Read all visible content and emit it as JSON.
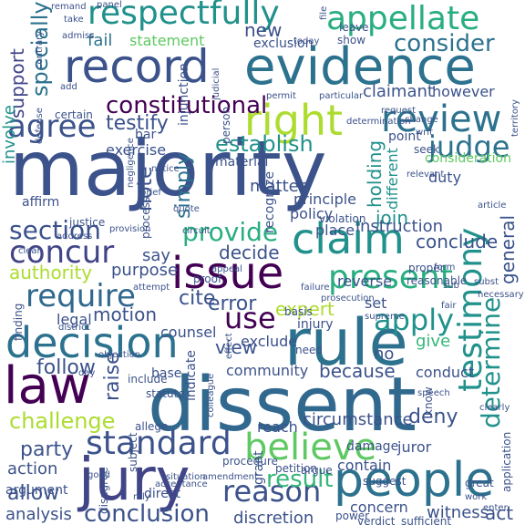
{
  "palette": {
    "dark_purple": "#440154",
    "purple": "#472d7b",
    "indigo": "#3b528b",
    "blue": "#2c728e",
    "teal": "#21918c",
    "green": "#28ae80",
    "lime": "#5ec962",
    "yellow": "#addc30",
    "bright_yellow": "#d8e219"
  },
  "words": [
    {
      "text": "majority",
      "color": "#3b528b"
    },
    {
      "text": "dissent",
      "color": "#31688e"
    },
    {
      "text": "evidence",
      "color": "#2c728e"
    },
    {
      "text": "record",
      "color": "#3b528b"
    },
    {
      "text": "rule",
      "color": "#2c728e"
    },
    {
      "text": "law",
      "color": "#440154"
    },
    {
      "text": "jury",
      "color": "#414487"
    },
    {
      "text": "decision",
      "color": "#2c728e"
    },
    {
      "text": "issue",
      "color": "#440154"
    },
    {
      "text": "claim",
      "color": "#21918c"
    },
    {
      "text": "people",
      "color": "#2c728e"
    },
    {
      "text": "right",
      "color": "#addc30"
    },
    {
      "text": "review",
      "color": "#2c728e"
    },
    {
      "text": "believe",
      "color": "#5ec962"
    },
    {
      "text": "respectfully",
      "color": "#21918c"
    },
    {
      "text": "appellate",
      "color": "#28ae80"
    },
    {
      "text": "present",
      "color": "#28ae80"
    },
    {
      "text": "standard",
      "color": "#3b528b"
    },
    {
      "text": "reason",
      "color": "#3b528b"
    },
    {
      "text": "agree",
      "color": "#3b528b"
    },
    {
      "text": "judge",
      "color": "#2c728e"
    },
    {
      "text": "consider",
      "color": "#2c728e"
    },
    {
      "text": "constitutional",
      "color": "#440154"
    },
    {
      "text": "testimony",
      "color": "#21918c"
    },
    {
      "text": "determine",
      "color": "#21918c"
    },
    {
      "text": "result",
      "color": "#35b779"
    },
    {
      "text": "conclusion",
      "color": "#3b528b"
    },
    {
      "text": "concur",
      "color": "#414487"
    },
    {
      "text": "section",
      "color": "#3b528b"
    },
    {
      "text": "require",
      "color": "#31688e"
    },
    {
      "text": "provide",
      "color": "#28ae80"
    },
    {
      "text": "apply",
      "color": "#21918c"
    },
    {
      "text": "use",
      "color": "#440154"
    },
    {
      "text": "challenge",
      "color": "#addc30"
    },
    {
      "text": "establish",
      "color": "#21918c"
    },
    {
      "text": "testify",
      "color": "#3b528b"
    },
    {
      "text": "specially",
      "color": "#2c728e"
    },
    {
      "text": "support",
      "color": "#414487"
    },
    {
      "text": "involve",
      "color": "#21918c"
    },
    {
      "text": "fail",
      "color": "#2c728e"
    },
    {
      "text": "statement",
      "color": "#5ec962"
    },
    {
      "text": "new",
      "color": "#3b528b"
    },
    {
      "text": "exclusion",
      "color": "#3b528b"
    },
    {
      "text": "claimant",
      "color": "#3b528b"
    },
    {
      "text": "however",
      "color": "#3b528b"
    },
    {
      "text": "holding",
      "color": "#21918c"
    },
    {
      "text": "different",
      "color": "#21918c"
    },
    {
      "text": "exercise",
      "color": "#3b528b"
    },
    {
      "text": "simply",
      "color": "#2c728e"
    },
    {
      "text": "note",
      "color": "#3b528b"
    },
    {
      "text": "matter",
      "color": "#3b528b"
    },
    {
      "text": "principle",
      "color": "#3b528b"
    },
    {
      "text": "join",
      "color": "#21918c"
    },
    {
      "text": "duty",
      "color": "#3b528b"
    },
    {
      "text": "consideration",
      "color": "#5ec962"
    },
    {
      "text": "decide",
      "color": "#3b528b"
    },
    {
      "text": "conclude",
      "color": "#3b528b"
    },
    {
      "text": "instruction",
      "color": "#3b528b"
    },
    {
      "text": "general",
      "color": "#3b528b"
    },
    {
      "text": "policy",
      "color": "#3b528b"
    },
    {
      "text": "place",
      "color": "#3b528b"
    },
    {
      "text": "say",
      "color": "#3b528b"
    },
    {
      "text": "authority",
      "color": "#addc30"
    },
    {
      "text": "purpose",
      "color": "#3b528b"
    },
    {
      "text": "cite",
      "color": "#3b528b"
    },
    {
      "text": "motion",
      "color": "#3b528b"
    },
    {
      "text": "error",
      "color": "#3b528b"
    },
    {
      "text": "expert",
      "color": "#addc30"
    },
    {
      "text": "set",
      "color": "#3b528b"
    },
    {
      "text": "reverse",
      "color": "#3b528b"
    },
    {
      "text": "give",
      "color": "#35b779"
    },
    {
      "text": "no",
      "color": "#3b528b"
    },
    {
      "text": "legal",
      "color": "#3b528b"
    },
    {
      "text": "counsel",
      "color": "#3b528b"
    },
    {
      "text": "view",
      "color": "#3b528b"
    },
    {
      "text": "exclude",
      "color": "#3b528b"
    },
    {
      "text": "injury",
      "color": "#3b528b"
    },
    {
      "text": "basis",
      "color": "#3b528b"
    },
    {
      "text": "follow",
      "color": "#3b528b"
    },
    {
      "text": "community",
      "color": "#3b528b"
    },
    {
      "text": "because",
      "color": "#3b528b"
    },
    {
      "text": "conduct",
      "color": "#3b528b"
    },
    {
      "text": "raise",
      "color": "#3b528b"
    },
    {
      "text": "party",
      "color": "#3b528b"
    },
    {
      "text": "deny",
      "color": "#3b528b"
    },
    {
      "text": "action",
      "color": "#3b528b"
    },
    {
      "text": "allow",
      "color": "#3b528b"
    },
    {
      "text": "argument",
      "color": "#3b528b"
    },
    {
      "text": "analysis",
      "color": "#3b528b"
    },
    {
      "text": "circumstance",
      "color": "#3b528b"
    },
    {
      "text": "contain",
      "color": "#3b528b"
    },
    {
      "text": "juror",
      "color": "#3b528b"
    },
    {
      "text": "concern",
      "color": "#3b528b"
    },
    {
      "text": "witness",
      "color": "#3b528b"
    },
    {
      "text": "act",
      "color": "#3b528b"
    },
    {
      "text": "discretion",
      "color": "#3b528b"
    },
    {
      "text": "reach",
      "color": "#3b528b"
    },
    {
      "text": "damage",
      "color": "#3b528b"
    },
    {
      "text": "finding",
      "color": "#3b528b"
    },
    {
      "text": "district",
      "color": "#3b528b"
    },
    {
      "text": "base",
      "color": "#3b528b"
    },
    {
      "text": "proof",
      "color": "#3b528b"
    },
    {
      "text": "need",
      "color": "#3b528b"
    },
    {
      "text": "grant",
      "color": "#3b528b"
    },
    {
      "text": "direct",
      "color": "#3b528b"
    },
    {
      "text": "allege",
      "color": "#3b528b"
    },
    {
      "text": "indicate",
      "color": "#3b528b"
    },
    {
      "text": "certain",
      "color": "#3b528b"
    },
    {
      "text": "affirm",
      "color": "#3b528b"
    },
    {
      "text": "bar",
      "color": "#3b528b"
    },
    {
      "text": "injunction",
      "color": "#3b528b"
    },
    {
      "text": "material",
      "color": "#3b528b"
    },
    {
      "text": "recognize",
      "color": "#3b528b"
    },
    {
      "text": "process",
      "color": "#3b528b"
    },
    {
      "text": "point",
      "color": "#3b528b"
    },
    {
      "text": "seek",
      "color": "#3b528b"
    },
    {
      "text": "justice",
      "color": "#3b528b"
    },
    {
      "text": "violation",
      "color": "#3b528b"
    },
    {
      "text": "know",
      "color": "#3b528b"
    },
    {
      "text": "proper",
      "color": "#3b528b"
    },
    {
      "text": "subject",
      "color": "#3b528b"
    },
    {
      "text": "statute",
      "color": "#3b528b"
    },
    {
      "text": "include",
      "color": "#3b528b"
    },
    {
      "text": "procedure",
      "color": "#3b528b"
    },
    {
      "text": "petition",
      "color": "#3b528b"
    },
    {
      "text": "argue",
      "color": "#3b528b"
    },
    {
      "text": "suggest",
      "color": "#3b528b"
    },
    {
      "text": "disagree",
      "color": "#3b528b"
    },
    {
      "text": "rely",
      "color": "#3b528b"
    },
    {
      "text": "sufficient",
      "color": "#3b528b"
    },
    {
      "text": "verdict",
      "color": "#3b528b"
    },
    {
      "text": "power",
      "color": "#3b528b"
    },
    {
      "text": "great",
      "color": "#3b528b"
    },
    {
      "text": "work",
      "color": "#3b528b"
    },
    {
      "text": "application",
      "color": "#3b528b"
    },
    {
      "text": "necessary",
      "color": "#3b528b"
    },
    {
      "text": "reasonable",
      "color": "#3b528b"
    },
    {
      "text": "enter",
      "color": "#3b528b"
    },
    {
      "text": "form",
      "color": "#3b528b"
    },
    {
      "text": "show",
      "color": "#3b528b"
    },
    {
      "text": "leave",
      "color": "#3b528b"
    },
    {
      "text": "today",
      "color": "#3b528b"
    },
    {
      "text": "request",
      "color": "#3b528b"
    },
    {
      "text": "permit",
      "color": "#3b528b"
    },
    {
      "text": "particular",
      "color": "#3b528b"
    },
    {
      "text": "determination",
      "color": "#3b528b"
    },
    {
      "text": "person",
      "color": "#3b528b"
    },
    {
      "text": "judicial",
      "color": "#3b528b"
    },
    {
      "text": "contrary",
      "color": "#3b528b"
    },
    {
      "text": "defense",
      "color": "#3b528b"
    },
    {
      "text": "clear",
      "color": "#3b528b"
    },
    {
      "text": "article",
      "color": "#3b528b"
    },
    {
      "text": "address",
      "color": "#3b528b"
    },
    {
      "text": "provision",
      "color": "#3b528b"
    },
    {
      "text": "circuit",
      "color": "#3b528b"
    },
    {
      "text": "attempt",
      "color": "#3b528b"
    },
    {
      "text": "objection",
      "color": "#3b528b"
    },
    {
      "text": "acceptance",
      "color": "#3b528b"
    },
    {
      "text": "situation",
      "color": "#3b528b"
    },
    {
      "text": "amendment",
      "color": "#3b528b"
    },
    {
      "text": "colleague",
      "color": "#3b528b"
    },
    {
      "text": "negligence",
      "color": "#3b528b"
    },
    {
      "text": "quote",
      "color": "#3b528b"
    },
    {
      "text": "territory",
      "color": "#3b528b"
    },
    {
      "text": "relevant",
      "color": "#3b528b"
    },
    {
      "text": "change",
      "color": "#3b528b"
    },
    {
      "text": "fair",
      "color": "#3b528b"
    },
    {
      "text": "writ",
      "color": "#3b528b"
    },
    {
      "text": "file",
      "color": "#3b528b"
    },
    {
      "text": "add",
      "color": "#3b528b"
    },
    {
      "text": "panel",
      "color": "#3b528b"
    },
    {
      "text": "take",
      "color": "#3b528b"
    },
    {
      "text": "notice",
      "color": "#3b528b"
    },
    {
      "text": "good",
      "color": "#3b528b"
    },
    {
      "text": "effect",
      "color": "#3b528b"
    },
    {
      "text": "day",
      "color": "#3b528b"
    },
    {
      "text": "appeal",
      "color": "#3b528b"
    },
    {
      "text": "failure",
      "color": "#3b528b"
    },
    {
      "text": "prosecution",
      "color": "#3b528b"
    },
    {
      "text": "supreme",
      "color": "#3b528b"
    },
    {
      "text": "clearly",
      "color": "#3b528b"
    },
    {
      "text": "speech",
      "color": "#3b528b"
    },
    {
      "text": "subst",
      "color": "#3b528b"
    },
    {
      "text": "brief",
      "color": "#3b528b"
    },
    {
      "text": "sub",
      "color": "#3b528b"
    },
    {
      "text": "admiss",
      "color": "#3b528b"
    },
    {
      "text": "remand",
      "color": "#3b528b"
    }
  ]
}
